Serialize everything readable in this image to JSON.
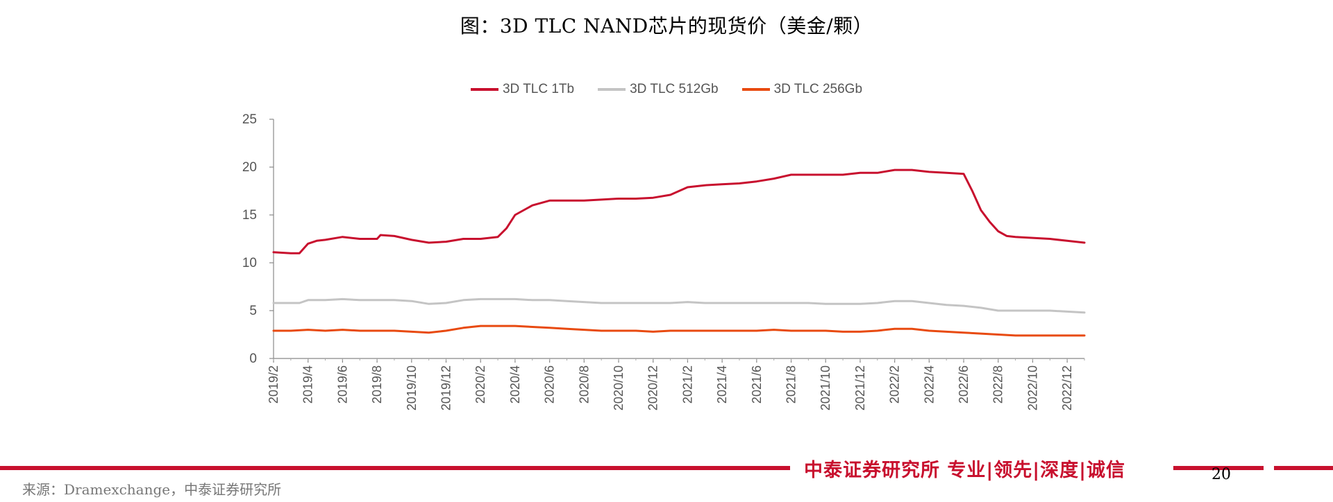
{
  "page": {
    "title": "图：3D TLC NAND芯片的现货价（美金/颗）",
    "footer_slogan": "中泰证券研究所 专业|领先|深度|诚信",
    "page_number": "20",
    "source": "来源：Dramexchange，中泰证券研究所",
    "brand_color": "#c8102e"
  },
  "chart_data": {
    "type": "line",
    "title": "图：3D TLC NAND芯片的现货价（美金/颗）",
    "xlabel": "",
    "ylabel": "",
    "ylim": [
      0,
      25
    ],
    "yticks": [
      0,
      5,
      10,
      15,
      20,
      25
    ],
    "grid": false,
    "legend_position": "top-center",
    "x_range": [
      "2019/2",
      "2023/1"
    ],
    "x_tick_labels": [
      "2019/2",
      "2019/4",
      "2019/6",
      "2019/8",
      "2019/10",
      "2019/12",
      "2020/2",
      "2020/4",
      "2020/6",
      "2020/8",
      "2020/10",
      "2020/12",
      "2021/2",
      "2021/4",
      "2021/6",
      "2021/8",
      "2021/10",
      "2021/12",
      "2022/2",
      "2022/4",
      "2022/6",
      "2022/8",
      "2022/10",
      "2022/12"
    ],
    "series": [
      {
        "name": "3D TLC 1Tb",
        "color": "#c8102e",
        "points": [
          [
            "2019/2",
            11.1
          ],
          [
            "2019/3",
            11.0
          ],
          [
            "2019/3.5",
            11.0
          ],
          [
            "2019/4",
            12.0
          ],
          [
            "2019/4.5",
            12.3
          ],
          [
            "2019/5",
            12.4
          ],
          [
            "2019/6",
            12.7
          ],
          [
            "2019/7",
            12.5
          ],
          [
            "2019/8",
            12.5
          ],
          [
            "2019/8.2",
            12.9
          ],
          [
            "2019/9",
            12.8
          ],
          [
            "2019/10",
            12.4
          ],
          [
            "2019/11",
            12.1
          ],
          [
            "2019/12",
            12.2
          ],
          [
            "2020/1",
            12.5
          ],
          [
            "2020/2",
            12.5
          ],
          [
            "2020/3",
            12.7
          ],
          [
            "2020/3.5",
            13.6
          ],
          [
            "2020/4",
            15.0
          ],
          [
            "2020/5",
            16.0
          ],
          [
            "2020/6",
            16.5
          ],
          [
            "2020/7",
            16.5
          ],
          [
            "2020/8",
            16.5
          ],
          [
            "2020/9",
            16.6
          ],
          [
            "2020/10",
            16.7
          ],
          [
            "2020/11",
            16.7
          ],
          [
            "2020/12",
            16.8
          ],
          [
            "2021/1",
            17.1
          ],
          [
            "2021/2",
            17.9
          ],
          [
            "2021/3",
            18.1
          ],
          [
            "2021/4",
            18.2
          ],
          [
            "2021/5",
            18.3
          ],
          [
            "2021/6",
            18.5
          ],
          [
            "2021/7",
            18.8
          ],
          [
            "2021/8",
            19.2
          ],
          [
            "2021/9",
            19.2
          ],
          [
            "2021/10",
            19.2
          ],
          [
            "2021/11",
            19.2
          ],
          [
            "2021/12",
            19.4
          ],
          [
            "2022/1",
            19.4
          ],
          [
            "2022/2",
            19.7
          ],
          [
            "2022/3",
            19.7
          ],
          [
            "2022/4",
            19.5
          ],
          [
            "2022/5",
            19.4
          ],
          [
            "2022/6",
            19.3
          ],
          [
            "2022/6.5",
            17.5
          ],
          [
            "2022/7",
            15.5
          ],
          [
            "2022/7.5",
            14.3
          ],
          [
            "2022/8",
            13.3
          ],
          [
            "2022/8.5",
            12.8
          ],
          [
            "2022/9",
            12.7
          ],
          [
            "2022/10",
            12.6
          ],
          [
            "2022/11",
            12.5
          ],
          [
            "2022/12",
            12.3
          ],
          [
            "2023/1",
            12.1
          ]
        ]
      },
      {
        "name": "3D TLC 512Gb",
        "color": "#c4c4c4",
        "points": [
          [
            "2019/2",
            5.8
          ],
          [
            "2019/3",
            5.8
          ],
          [
            "2019/3.5",
            5.8
          ],
          [
            "2019/4",
            6.1
          ],
          [
            "2019/5",
            6.1
          ],
          [
            "2019/6",
            6.2
          ],
          [
            "2019/7",
            6.1
          ],
          [
            "2019/8",
            6.1
          ],
          [
            "2019/9",
            6.1
          ],
          [
            "2019/10",
            6.0
          ],
          [
            "2019/11",
            5.7
          ],
          [
            "2019/12",
            5.8
          ],
          [
            "2020/1",
            6.1
          ],
          [
            "2020/2",
            6.2
          ],
          [
            "2020/3",
            6.2
          ],
          [
            "2020/4",
            6.2
          ],
          [
            "2020/5",
            6.1
          ],
          [
            "2020/6",
            6.1
          ],
          [
            "2020/7",
            6.0
          ],
          [
            "2020/8",
            5.9
          ],
          [
            "2020/9",
            5.8
          ],
          [
            "2020/10",
            5.8
          ],
          [
            "2020/11",
            5.8
          ],
          [
            "2020/12",
            5.8
          ],
          [
            "2021/1",
            5.8
          ],
          [
            "2021/2",
            5.9
          ],
          [
            "2021/3",
            5.8
          ],
          [
            "2021/4",
            5.8
          ],
          [
            "2021/5",
            5.8
          ],
          [
            "2021/6",
            5.8
          ],
          [
            "2021/7",
            5.8
          ],
          [
            "2021/8",
            5.8
          ],
          [
            "2021/9",
            5.8
          ],
          [
            "2021/10",
            5.7
          ],
          [
            "2021/11",
            5.7
          ],
          [
            "2021/12",
            5.7
          ],
          [
            "2022/1",
            5.8
          ],
          [
            "2022/2",
            6.0
          ],
          [
            "2022/3",
            6.0
          ],
          [
            "2022/4",
            5.8
          ],
          [
            "2022/5",
            5.6
          ],
          [
            "2022/6",
            5.5
          ],
          [
            "2022/7",
            5.3
          ],
          [
            "2022/8",
            5.0
          ],
          [
            "2022/9",
            5.0
          ],
          [
            "2022/10",
            5.0
          ],
          [
            "2022/11",
            5.0
          ],
          [
            "2022/12",
            4.9
          ],
          [
            "2023/1",
            4.8
          ]
        ]
      },
      {
        "name": "3D TLC 256Gb",
        "color": "#e84a10",
        "points": [
          [
            "2019/2",
            2.9
          ],
          [
            "2019/3",
            2.9
          ],
          [
            "2019/4",
            3.0
          ],
          [
            "2019/5",
            2.9
          ],
          [
            "2019/6",
            3.0
          ],
          [
            "2019/7",
            2.9
          ],
          [
            "2019/8",
            2.9
          ],
          [
            "2019/9",
            2.9
          ],
          [
            "2019/10",
            2.8
          ],
          [
            "2019/11",
            2.7
          ],
          [
            "2019/12",
            2.9
          ],
          [
            "2020/1",
            3.2
          ],
          [
            "2020/2",
            3.4
          ],
          [
            "2020/3",
            3.4
          ],
          [
            "2020/4",
            3.4
          ],
          [
            "2020/5",
            3.3
          ],
          [
            "2020/6",
            3.2
          ],
          [
            "2020/7",
            3.1
          ],
          [
            "2020/8",
            3.0
          ],
          [
            "2020/9",
            2.9
          ],
          [
            "2020/10",
            2.9
          ],
          [
            "2020/11",
            2.9
          ],
          [
            "2020/12",
            2.8
          ],
          [
            "2021/1",
            2.9
          ],
          [
            "2021/2",
            2.9
          ],
          [
            "2021/3",
            2.9
          ],
          [
            "2021/4",
            2.9
          ],
          [
            "2021/5",
            2.9
          ],
          [
            "2021/6",
            2.9
          ],
          [
            "2021/7",
            3.0
          ],
          [
            "2021/8",
            2.9
          ],
          [
            "2021/9",
            2.9
          ],
          [
            "2021/10",
            2.9
          ],
          [
            "2021/11",
            2.8
          ],
          [
            "2021/12",
            2.8
          ],
          [
            "2022/1",
            2.9
          ],
          [
            "2022/2",
            3.1
          ],
          [
            "2022/3",
            3.1
          ],
          [
            "2022/4",
            2.9
          ],
          [
            "2022/5",
            2.8
          ],
          [
            "2022/6",
            2.7
          ],
          [
            "2022/7",
            2.6
          ],
          [
            "2022/8",
            2.5
          ],
          [
            "2022/9",
            2.4
          ],
          [
            "2022/10",
            2.4
          ],
          [
            "2022/11",
            2.4
          ],
          [
            "2022/12",
            2.4
          ],
          [
            "2023/1",
            2.4
          ]
        ]
      }
    ]
  }
}
